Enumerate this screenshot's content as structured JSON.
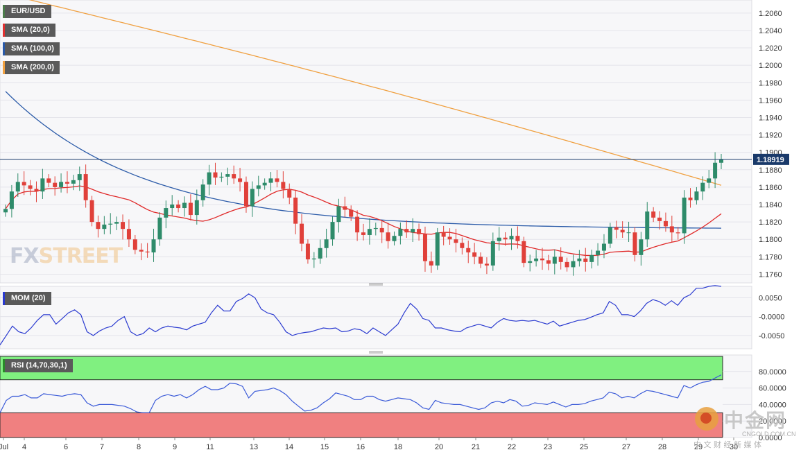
{
  "legends": {
    "pair": {
      "label": "EUR/USD",
      "color": "#4a7a4a"
    },
    "sma20": {
      "label": "SMA (20,0)",
      "color": "#e03030"
    },
    "sma100": {
      "label": "SMA (100,0)",
      "color": "#2a5aa8"
    },
    "sma200": {
      "label": "SMA (200,0)",
      "color": "#f0a040"
    },
    "mom": {
      "label": "MOM (20)",
      "color": "#2a3ad0"
    },
    "rsi": {
      "label": "RSI (14,70,30,1)",
      "color": "#2a8a2a"
    }
  },
  "watermark": {
    "fx": "FX",
    "street": "STREET"
  },
  "brand": {
    "cn": "中金网",
    "url": "CNGOLD.COM.CN",
    "sub": "中 文 财 经 新 媒 体"
  },
  "colors": {
    "up": "#2e8b6a",
    "down": "#e0403a",
    "sma20": "#e02828",
    "sma100": "#2a5aa8",
    "sma200": "#f0a040",
    "mom": "#2a3ad0",
    "rsi": "#3a5ad8",
    "overbought": "#80f080",
    "oversold": "#f08080",
    "grid": "#e4e4ea",
    "last_price": "#1a3a6a"
  },
  "chart_data": [
    {
      "type": "candlestick",
      "title": "EUR/USD",
      "last_price": "1.18919",
      "ylim": [
        1.175,
        1.2075
      ],
      "yticks": [
        "1.1760",
        "1.1780",
        "1.1800",
        "1.1820",
        "1.1840",
        "1.1860",
        "1.1880",
        "1.1900",
        "1.1920",
        "1.1940",
        "1.1960",
        "1.1980",
        "1.2000",
        "1.2020",
        "1.2040",
        "1.2060"
      ],
      "x_labels": [
        "Jul",
        "4",
        "6",
        "7",
        "8",
        "9",
        "11",
        "13",
        "14",
        "15",
        "16",
        "18",
        "20",
        "21",
        "22",
        "23",
        "25",
        "27",
        "28",
        "29",
        "30"
      ],
      "ohlc_closes": [
        1.1835,
        1.1855,
        1.1866,
        1.1862,
        1.1858,
        1.1855,
        1.187,
        1.1865,
        1.186,
        1.1866,
        1.1864,
        1.1868,
        1.1875,
        1.1845,
        1.182,
        1.1812,
        1.1817,
        1.1818,
        1.182,
        1.1812,
        1.18,
        1.1788,
        1.1786,
        1.1785,
        1.18,
        1.1825,
        1.1836,
        1.184,
        1.1836,
        1.1842,
        1.1828,
        1.1845,
        1.1863,
        1.1877,
        1.1871,
        1.1872,
        1.1875,
        1.187,
        1.1866,
        1.1838,
        1.1858,
        1.1862,
        1.1865,
        1.187,
        1.1866,
        1.1858,
        1.1848,
        1.1818,
        1.1795,
        1.1777,
        1.1778,
        1.179,
        1.18,
        1.182,
        1.1838,
        1.1834,
        1.1826,
        1.1808,
        1.1805,
        1.1812,
        1.1813,
        1.1808,
        1.1798,
        1.1804,
        1.1812,
        1.1808,
        1.1812,
        1.1806,
        1.1775,
        1.177,
        1.1808,
        1.1803,
        1.18,
        1.1796,
        1.179,
        1.1785,
        1.178,
        1.1772,
        1.177,
        1.1798,
        1.1802,
        1.18,
        1.1804,
        1.1798,
        1.1773,
        1.1775,
        1.1778,
        1.1776,
        1.1772,
        1.178,
        1.1774,
        1.1768,
        1.1775,
        1.1778,
        1.1774,
        1.1782,
        1.1787,
        1.1795,
        1.1814,
        1.1811,
        1.1808,
        1.1808,
        1.1782,
        1.18,
        1.1832,
        1.1825,
        1.1821,
        1.1815,
        1.1808,
        1.1807,
        1.1848,
        1.1845,
        1.1855,
        1.1865,
        1.187,
        1.1888,
        1.1892
      ]
    },
    {
      "type": "line",
      "title": "MOM (20)",
      "ylim": [
        -0.0085,
        0.008
      ],
      "yticks": [
        "0.0050",
        "-0.0000",
        "-0.0050"
      ],
      "values": [
        -0.0075,
        -0.005,
        -0.0025,
        -0.004,
        -0.0045,
        -0.003,
        -0.001,
        0.0005,
        0.0005,
        -0.002,
        -0.0005,
        0.001,
        0.0018,
        0.0005,
        -0.004,
        -0.005,
        -0.0038,
        -0.003,
        -0.0025,
        -0.001,
        0.0,
        -0.004,
        -0.005,
        -0.0045,
        -0.003,
        -0.004,
        -0.003,
        -0.0025,
        -0.0028,
        -0.003,
        -0.0035,
        -0.0025,
        -0.002,
        -0.0015,
        0.001,
        0.003,
        0.0015,
        0.0015,
        0.004,
        0.0048,
        0.006,
        0.005,
        0.002,
        0.001,
        0.0005,
        -0.0015,
        -0.004,
        -0.005,
        -0.0045,
        -0.0042,
        -0.004,
        -0.0035,
        -0.003,
        -0.0032,
        -0.003,
        -0.004,
        -0.0038,
        -0.0032,
        -0.0035,
        -0.0045,
        -0.003,
        -0.004,
        -0.005,
        -0.0035,
        -0.002,
        0.001,
        0.0035,
        0.002,
        -0.0005,
        -0.001,
        -0.003,
        -0.003,
        -0.0035,
        -0.0038,
        -0.004,
        -0.003,
        -0.0025,
        -0.002,
        -0.0025,
        -0.003,
        -0.0015,
        -0.0005,
        -0.001,
        -0.0012,
        -0.001,
        -0.0012,
        -0.001,
        -0.0015,
        -0.002,
        -0.0012,
        -0.0025,
        -0.002,
        -0.0015,
        -0.001,
        -0.0008,
        -0.0002,
        0.0005,
        0.001,
        0.004,
        0.003,
        0.0005,
        0.0005,
        0.0,
        0.0015,
        0.0035,
        0.0045,
        0.004,
        0.003,
        0.0042,
        0.003,
        0.005,
        0.0058,
        0.0075,
        0.0075,
        0.008,
        0.0082,
        0.008
      ]
    },
    {
      "type": "line",
      "title": "RSI (14,70,30,1)",
      "ylim": [
        0,
        100
      ],
      "overbought": 70,
      "oversold": 30,
      "yticks": [
        "80.0000",
        "60.0000",
        "40.0000",
        "20.0000",
        "0.0000"
      ],
      "values": [
        30,
        45,
        50,
        50,
        52,
        48,
        48,
        53,
        52,
        51,
        50,
        52,
        53,
        52,
        42,
        38,
        40,
        40,
        40,
        39,
        38,
        35,
        31,
        30,
        30,
        45,
        50,
        52,
        50,
        52,
        48,
        52,
        58,
        62,
        58,
        58,
        60,
        66,
        65,
        62,
        48,
        56,
        57,
        58,
        60,
        57,
        52,
        44,
        38,
        32,
        33,
        36,
        42,
        47,
        54,
        52,
        50,
        46,
        46,
        50,
        50,
        46,
        44,
        46,
        48,
        47,
        46,
        42,
        36,
        34,
        45,
        42,
        41,
        40,
        40,
        38,
        36,
        34,
        36,
        42,
        44,
        42,
        46,
        44,
        38,
        39,
        42,
        41,
        40,
        43,
        40,
        37,
        40,
        40,
        41,
        44,
        46,
        48,
        55,
        53,
        48,
        50,
        48,
        53,
        57,
        56,
        54,
        52,
        50,
        48,
        63,
        60,
        64,
        67,
        68,
        72,
        76
      ]
    }
  ]
}
